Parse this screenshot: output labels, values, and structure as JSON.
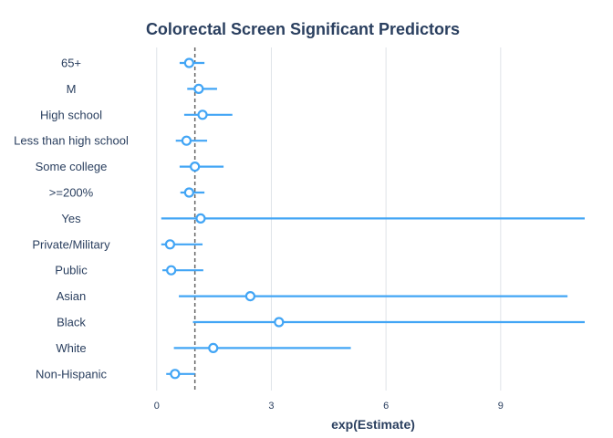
{
  "chart_data": {
    "type": "forest",
    "title": "Colorectal Screen Significant Predictors",
    "xlabel": "exp(Estimate)",
    "ylabel": "",
    "xlim": [
      -0.4,
      11.2
    ],
    "xticks": [
      0,
      3,
      6,
      9
    ],
    "reference_line": 1,
    "grid": "vertical",
    "colors": {
      "marker": "#42a5f5",
      "gridline": "#dfe3e8",
      "reference": "#666666",
      "text": "#2a3f5f"
    },
    "categories": [
      "65+",
      "M",
      "High school",
      "Less than high school",
      "Some college",
      ">=200%",
      "Yes",
      "Private/Military",
      "Public",
      "Asian",
      "Black",
      "White",
      "Non-Hispanic"
    ],
    "estimates": [
      0.85,
      1.1,
      1.2,
      0.78,
      1.0,
      0.85,
      1.15,
      0.35,
      0.38,
      2.45,
      3.2,
      1.48,
      0.48
    ],
    "lower": [
      0.6,
      0.8,
      0.72,
      0.5,
      0.6,
      0.62,
      0.12,
      0.12,
      0.15,
      0.58,
      0.95,
      0.45,
      0.25
    ],
    "upper": [
      1.25,
      1.58,
      1.98,
      1.32,
      1.75,
      1.25,
      11.2,
      1.2,
      1.22,
      10.75,
      11.2,
      5.08,
      1.0
    ]
  }
}
